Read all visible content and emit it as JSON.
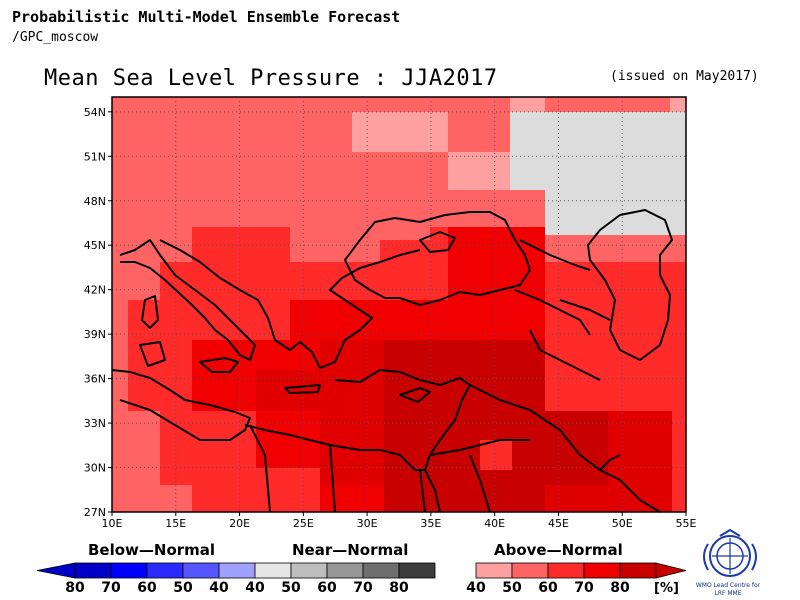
{
  "header": {
    "title_line1": "Probabilistic Multi-Model Ensemble Forecast",
    "title_line2": "/GPC_moscow"
  },
  "map": {
    "title": "Mean Sea Level Pressure : JJA2017",
    "issued": "(issued on May2017)",
    "lon_labels": [
      "10E",
      "15E",
      "20E",
      "25E",
      "30E",
      "35E",
      "40E",
      "45E",
      "50E",
      "55E"
    ],
    "lat_labels": [
      "54N",
      "51N",
      "48N",
      "45N",
      "42N",
      "39N",
      "36N",
      "33N",
      "30N",
      "27N"
    ],
    "lon_range": [
      10,
      55
    ],
    "lat_range": [
      27,
      55
    ],
    "grid": true
  },
  "legend": {
    "below": {
      "label": "Below—Normal",
      "ticks": [
        "80",
        "70",
        "60",
        "50",
        "40"
      ],
      "colors": [
        "#0000c8",
        "#0000ff",
        "#2a2aff",
        "#5656ff",
        "#a0a0ff"
      ]
    },
    "near": {
      "label": "Near—Normal",
      "ticks": [
        "40",
        "50",
        "60",
        "70",
        "80"
      ],
      "colors": [
        "#e6e6e6",
        "#bebebe",
        "#969696",
        "#6e6e6e",
        "#3c3c3c"
      ]
    },
    "above": {
      "label": "Above—Normal",
      "ticks": [
        "40",
        "50",
        "60",
        "70",
        "80"
      ],
      "colors": [
        "#ffa0a0",
        "#ff6464",
        "#ff2a2a",
        "#f00000",
        "#c80000"
      ],
      "unit": "[%]"
    }
  },
  "logo": {
    "line1": "WMO Lead Centre for",
    "line2": "LRF MME"
  }
}
